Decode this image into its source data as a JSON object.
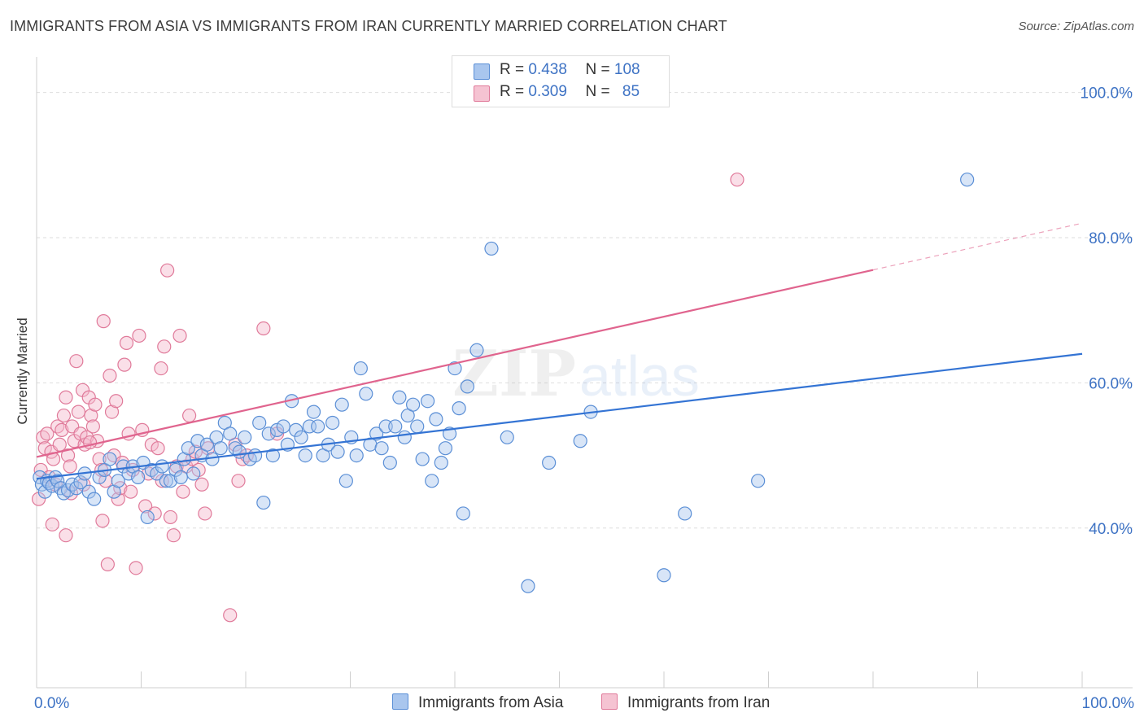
{
  "title": "IMMIGRANTS FROM ASIA VS IMMIGRANTS FROM IRAN CURRENTLY MARRIED CORRELATION CHART",
  "source": "Source: ZipAtlas.com",
  "watermark": {
    "zip": "ZIP",
    "atlas": "atlas"
  },
  "legend": {
    "asia": {
      "r_label": "R =",
      "r_value": "0.438",
      "n_label": "N =",
      "n_value": "108"
    },
    "iran": {
      "r_label": "R =",
      "r_value": "0.309",
      "n_label": "N =",
      "n_value": "85"
    }
  },
  "bottom_legend": {
    "asia": "Immigrants from Asia",
    "iran": "Immigrants from Iran"
  },
  "chart_data": {
    "type": "scatter",
    "title": "IMMIGRANTS FROM ASIA VS IMMIGRANTS FROM IRAN CURRENTLY MARRIED CORRELATION CHART",
    "xlabel": "",
    "ylabel": "Currently Married",
    "xlim": [
      0,
      100
    ],
    "ylim": [
      18,
      104
    ],
    "x_tick_labels": [
      "0.0%",
      "100.0%"
    ],
    "y_tick_values": [
      40,
      60,
      80,
      100
    ],
    "y_tick_labels": [
      "40.0%",
      "60.0%",
      "80.0%",
      "100.0%"
    ],
    "grid": true,
    "legend_position": "top-center",
    "colors": {
      "asia": "#5b8fd6",
      "asia_fill": "#a9c6ee",
      "asia_line": "#3474d4",
      "iran": "#e07a9a",
      "iran_fill": "#f5b8cb",
      "iran_line": "#e0648e"
    },
    "series": [
      {
        "name": "Immigrants from Asia",
        "r": 0.438,
        "n": 108,
        "trend": {
          "x0": 0,
          "y0": 46.8,
          "x1": 100,
          "y1": 64.0,
          "dashed_from": null
        },
        "points": [
          [
            0.3,
            47.0
          ],
          [
            0.5,
            46.0
          ],
          [
            0.8,
            45.0
          ],
          [
            1.0,
            46.5
          ],
          [
            1.2,
            46.2
          ],
          [
            1.5,
            45.8
          ],
          [
            1.8,
            47.0
          ],
          [
            2.0,
            46.5
          ],
          [
            2.3,
            45.5
          ],
          [
            2.6,
            44.8
          ],
          [
            3.0,
            45.2
          ],
          [
            3.4,
            46.0
          ],
          [
            3.8,
            45.5
          ],
          [
            4.2,
            46.3
          ],
          [
            4.6,
            47.5
          ],
          [
            5.0,
            45.0
          ],
          [
            5.5,
            44.0
          ],
          [
            6.0,
            47.0
          ],
          [
            6.5,
            48.0
          ],
          [
            7.0,
            49.5
          ],
          [
            7.4,
            45.0
          ],
          [
            7.8,
            46.5
          ],
          [
            8.3,
            48.5
          ],
          [
            8.8,
            47.5
          ],
          [
            9.2,
            48.5
          ],
          [
            9.7,
            47.0
          ],
          [
            10.2,
            49.0
          ],
          [
            10.6,
            41.5
          ],
          [
            11.0,
            48.0
          ],
          [
            11.5,
            47.5
          ],
          [
            12.0,
            48.5
          ],
          [
            12.4,
            46.5
          ],
          [
            12.8,
            46.5
          ],
          [
            13.3,
            48.0
          ],
          [
            13.8,
            47.0
          ],
          [
            14.1,
            49.5
          ],
          [
            14.5,
            51.0
          ],
          [
            15.0,
            47.5
          ],
          [
            15.4,
            52.0
          ],
          [
            15.8,
            50.0
          ],
          [
            16.3,
            51.5
          ],
          [
            16.8,
            49.5
          ],
          [
            17.2,
            52.5
          ],
          [
            17.6,
            51.0
          ],
          [
            18.0,
            54.5
          ],
          [
            18.5,
            53.0
          ],
          [
            19.0,
            51.0
          ],
          [
            19.4,
            50.5
          ],
          [
            19.9,
            52.5
          ],
          [
            20.4,
            49.5
          ],
          [
            20.9,
            50.0
          ],
          [
            21.3,
            54.5
          ],
          [
            21.7,
            43.5
          ],
          [
            22.2,
            53.0
          ],
          [
            22.6,
            50.0
          ],
          [
            23.0,
            53.5
          ],
          [
            23.6,
            54.0
          ],
          [
            24.0,
            51.5
          ],
          [
            24.4,
            57.5
          ],
          [
            24.8,
            53.5
          ],
          [
            25.3,
            52.5
          ],
          [
            25.7,
            50.0
          ],
          [
            26.1,
            54.0
          ],
          [
            26.5,
            56.0
          ],
          [
            26.9,
            54.0
          ],
          [
            27.4,
            50.0
          ],
          [
            27.9,
            51.5
          ],
          [
            28.3,
            54.5
          ],
          [
            28.8,
            50.5
          ],
          [
            29.2,
            57.0
          ],
          [
            29.6,
            46.5
          ],
          [
            30.1,
            52.5
          ],
          [
            30.6,
            50.0
          ],
          [
            31.0,
            62.0
          ],
          [
            31.5,
            58.5
          ],
          [
            31.9,
            51.5
          ],
          [
            32.5,
            53.0
          ],
          [
            33.0,
            51.0
          ],
          [
            33.4,
            54.0
          ],
          [
            33.8,
            49.0
          ],
          [
            34.3,
            54.0
          ],
          [
            34.7,
            58.0
          ],
          [
            35.2,
            52.5
          ],
          [
            35.5,
            55.5
          ],
          [
            36.0,
            57.0
          ],
          [
            36.4,
            54.0
          ],
          [
            36.9,
            49.5
          ],
          [
            37.4,
            57.5
          ],
          [
            37.8,
            46.5
          ],
          [
            38.2,
            55.0
          ],
          [
            38.7,
            49.0
          ],
          [
            39.1,
            51.0
          ],
          [
            39.5,
            53.0
          ],
          [
            40.0,
            62.0
          ],
          [
            40.4,
            56.5
          ],
          [
            40.8,
            42.0
          ],
          [
            41.2,
            59.5
          ],
          [
            42.1,
            64.5
          ],
          [
            43.5,
            78.5
          ],
          [
            47.0,
            32.0
          ],
          [
            49.0,
            49.0
          ],
          [
            53.0,
            56.0
          ],
          [
            60.0,
            33.5
          ],
          [
            62.0,
            42.0
          ],
          [
            69.0,
            46.5
          ],
          [
            89.0,
            88.0
          ],
          [
            52.0,
            52.0
          ],
          [
            45.0,
            52.5
          ]
        ]
      },
      {
        "name": "Immigrants from Iran",
        "r": 0.309,
        "n": 85,
        "trend": {
          "x0": 0,
          "y0": 49.8,
          "x1": 100,
          "y1": 82.0,
          "dashed_from": 80
        },
        "points": [
          [
            0.2,
            44.0
          ],
          [
            0.4,
            48.0
          ],
          [
            0.6,
            52.5
          ],
          [
            0.8,
            51.0
          ],
          [
            1.0,
            53.0
          ],
          [
            1.2,
            47.0
          ],
          [
            1.4,
            50.5
          ],
          [
            1.6,
            49.5
          ],
          [
            1.8,
            46.0
          ],
          [
            2.0,
            54.0
          ],
          [
            2.2,
            51.5
          ],
          [
            2.4,
            53.5
          ],
          [
            2.6,
            55.5
          ],
          [
            2.8,
            58.0
          ],
          [
            3.0,
            50.0
          ],
          [
            3.2,
            48.5
          ],
          [
            3.4,
            54.0
          ],
          [
            3.6,
            52.0
          ],
          [
            3.8,
            63.0
          ],
          [
            4.0,
            56.0
          ],
          [
            4.2,
            53.0
          ],
          [
            4.4,
            59.0
          ],
          [
            4.6,
            51.5
          ],
          [
            4.8,
            52.5
          ],
          [
            5.0,
            58.0
          ],
          [
            5.2,
            55.5
          ],
          [
            5.4,
            54.0
          ],
          [
            5.6,
            57.0
          ],
          [
            5.8,
            52.0
          ],
          [
            6.0,
            49.5
          ],
          [
            6.2,
            48.0
          ],
          [
            6.4,
            68.5
          ],
          [
            6.6,
            46.5
          ],
          [
            6.8,
            35.0
          ],
          [
            7.0,
            61.0
          ],
          [
            7.2,
            56.0
          ],
          [
            7.4,
            50.0
          ],
          [
            7.6,
            57.5
          ],
          [
            7.8,
            44.0
          ],
          [
            8.0,
            45.5
          ],
          [
            8.2,
            49.0
          ],
          [
            8.4,
            62.5
          ],
          [
            8.6,
            65.5
          ],
          [
            8.8,
            53.0
          ],
          [
            9.0,
            45.0
          ],
          [
            9.2,
            48.0
          ],
          [
            9.5,
            34.5
          ],
          [
            9.8,
            66.5
          ],
          [
            10.1,
            53.5
          ],
          [
            10.4,
            43.0
          ],
          [
            10.7,
            47.5
          ],
          [
            11.0,
            51.5
          ],
          [
            11.3,
            42.0
          ],
          [
            11.6,
            51.0
          ],
          [
            11.9,
            62.0
          ],
          [
            12.2,
            65.0
          ],
          [
            12.5,
            75.5
          ],
          [
            12.8,
            41.5
          ],
          [
            13.1,
            39.0
          ],
          [
            13.4,
            48.5
          ],
          [
            13.7,
            66.5
          ],
          [
            14.0,
            45.0
          ],
          [
            14.3,
            48.5
          ],
          [
            14.6,
            55.5
          ],
          [
            14.9,
            49.5
          ],
          [
            15.2,
            50.5
          ],
          [
            15.5,
            48.0
          ],
          [
            15.8,
            46.0
          ],
          [
            16.1,
            42.0
          ],
          [
            16.4,
            51.0
          ],
          [
            18.5,
            28.0
          ],
          [
            19.0,
            51.5
          ],
          [
            19.3,
            46.5
          ],
          [
            19.7,
            49.5
          ],
          [
            20.1,
            50.0
          ],
          [
            21.7,
            67.5
          ],
          [
            23.0,
            53.0
          ],
          [
            1.5,
            40.5
          ],
          [
            2.8,
            39.0
          ],
          [
            4.5,
            46.0
          ],
          [
            67.0,
            88.0
          ],
          [
            5.1,
            51.8
          ],
          [
            3.3,
            44.8
          ],
          [
            12.0,
            46.5
          ],
          [
            6.3,
            41.0
          ]
        ]
      }
    ]
  }
}
